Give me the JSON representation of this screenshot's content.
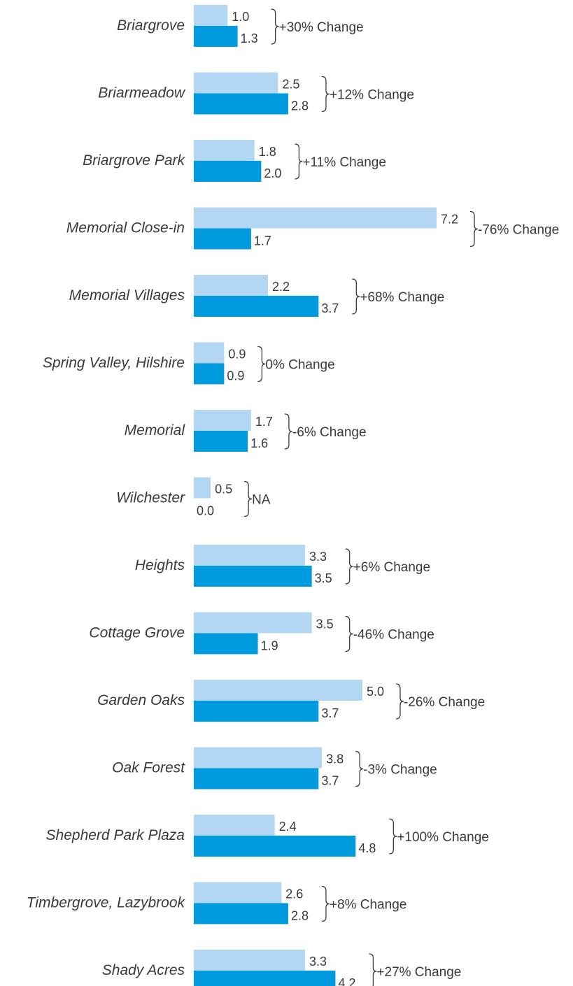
{
  "chart_data": {
    "type": "bar",
    "orientation": "horizontal",
    "categories": [
      "Briargrove",
      "Briarmeadow",
      "Briargrove Park",
      "Memorial Close-in",
      "Memorial Villages",
      "Spring Valley, Hilshire",
      "Memorial",
      "Wilchester",
      "Heights",
      "Cottage Grove",
      "Garden Oaks",
      "Oak Forest",
      "Shepherd Park Plaza",
      "Timbergrove, Lazybrook",
      "Shady Acres"
    ],
    "series": [
      {
        "values": [
          1.0,
          2.5,
          1.8,
          7.2,
          2.2,
          0.9,
          1.7,
          0.5,
          3.3,
          3.5,
          5.0,
          3.8,
          2.4,
          2.6,
          3.3
        ],
        "labels": [
          "1.0",
          "2.5",
          "1.8",
          "7.2",
          "2.2",
          "0.9",
          "1.7",
          "0.5",
          "3.3",
          "3.5",
          "5.0",
          "3.8",
          "2.4",
          "2.6",
          "3.3"
        ]
      },
      {
        "values": [
          1.3,
          2.8,
          2.0,
          1.7,
          3.7,
          0.9,
          1.6,
          0.0,
          3.5,
          1.9,
          3.7,
          3.7,
          4.8,
          2.8,
          4.2
        ],
        "labels": [
          "1.3",
          "2.8",
          "2.0",
          "1.7",
          "3.7",
          "0.9",
          "1.6",
          "0.0",
          "3.5",
          "1.9",
          "3.7",
          "3.7",
          "4.8",
          "2.8",
          "4.2"
        ]
      }
    ],
    "annotations": [
      "+30% Change",
      "+12% Change",
      "+11% Change",
      "-76% Change",
      "+68% Change",
      "0% Change",
      "-6% Change",
      "NA",
      "+6% Change",
      "-46% Change",
      "-26% Change",
      "-3% Change",
      "+100% Change",
      "+8% Change",
      "+27% Change"
    ],
    "xlim": [
      0,
      7.2
    ],
    "grid": false,
    "legend": "none",
    "colors": {
      "series_1": "#b3d6f2",
      "series_2": "#009ade",
      "text": "#3a3a3a"
    }
  }
}
